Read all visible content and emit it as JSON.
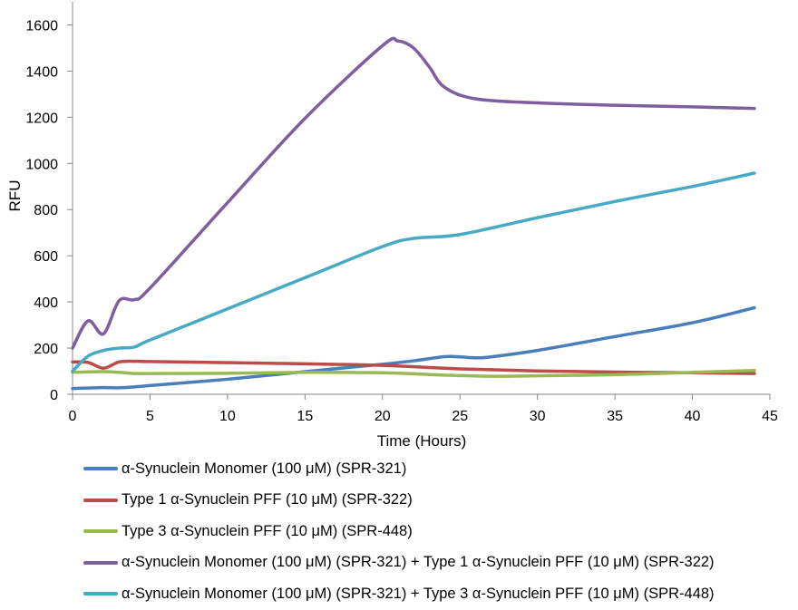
{
  "chart_data": {
    "type": "line",
    "title": "",
    "xlabel": "Time (Hours)",
    "ylabel": "RFU",
    "xlim": [
      0,
      45
    ],
    "ylim": [
      0,
      1700
    ],
    "x_ticks": [
      0,
      5,
      10,
      15,
      20,
      25,
      30,
      35,
      40,
      45
    ],
    "y_ticks": [
      0,
      200,
      400,
      600,
      800,
      1000,
      1200,
      1400,
      1600
    ],
    "grid": false,
    "legend_position": "bottom",
    "series": [
      {
        "name": "α-Synuclein Monomer (100 μM) (SPR-321)",
        "color": "#4a7ebb",
        "points": [
          [
            0,
            25
          ],
          [
            1,
            27
          ],
          [
            2,
            29
          ],
          [
            3,
            28
          ],
          [
            4,
            32
          ],
          [
            5,
            38
          ],
          [
            10,
            65
          ],
          [
            15,
            98
          ],
          [
            20,
            130
          ],
          [
            22,
            145
          ],
          [
            24,
            163
          ],
          [
            25,
            162
          ],
          [
            26,
            158
          ],
          [
            27,
            162
          ],
          [
            30,
            190
          ],
          [
            35,
            250
          ],
          [
            40,
            310
          ],
          [
            44,
            375
          ]
        ]
      },
      {
        "name": "Type 1 α-Synuclein PFF (10 μM) (SPR-322)",
        "color": "#be4b48",
        "points": [
          [
            0,
            140
          ],
          [
            1,
            138
          ],
          [
            2,
            113
          ],
          [
            3,
            140
          ],
          [
            4,
            143
          ],
          [
            5,
            142
          ],
          [
            10,
            137
          ],
          [
            15,
            132
          ],
          [
            20,
            125
          ],
          [
            25,
            110
          ],
          [
            30,
            101
          ],
          [
            35,
            96
          ],
          [
            40,
            93
          ],
          [
            44,
            90
          ]
        ]
      },
      {
        "name": "Type 3 α-Synuclein PFF (10 μM) (SPR-448)",
        "color": "#98b954",
        "points": [
          [
            0,
            95
          ],
          [
            1,
            97
          ],
          [
            2,
            98
          ],
          [
            3,
            95
          ],
          [
            4,
            90
          ],
          [
            5,
            90
          ],
          [
            10,
            91
          ],
          [
            15,
            95
          ],
          [
            20,
            93
          ],
          [
            24,
            83
          ],
          [
            27,
            78
          ],
          [
            30,
            80
          ],
          [
            35,
            85
          ],
          [
            40,
            95
          ],
          [
            44,
            103
          ]
        ]
      },
      {
        "name": "α-Synuclein Monomer (100 μM) (SPR-321) + Type 1 α-Synuclein PFF (10 μM) (SPR-322)",
        "color": "#7d5fa0",
        "points": [
          [
            0,
            200
          ],
          [
            1,
            318
          ],
          [
            2,
            262
          ],
          [
            3,
            405
          ],
          [
            4,
            410
          ],
          [
            5,
            460
          ],
          [
            10,
            830
          ],
          [
            15,
            1195
          ],
          [
            20,
            1510
          ],
          [
            21,
            1530
          ],
          [
            22,
            1500
          ],
          [
            23,
            1420
          ],
          [
            24,
            1330
          ],
          [
            26,
            1280
          ],
          [
            30,
            1262
          ],
          [
            35,
            1252
          ],
          [
            40,
            1245
          ],
          [
            44,
            1238
          ]
        ]
      },
      {
        "name": "α-Synuclein Monomer (100 μM) (SPR-321) + Type 3 α-Synuclein PFF (10 μM) (SPR-448)",
        "color": "#46aac5",
        "points": [
          [
            0,
            100
          ],
          [
            1,
            165
          ],
          [
            2,
            190
          ],
          [
            3,
            200
          ],
          [
            4,
            205
          ],
          [
            5,
            235
          ],
          [
            10,
            370
          ],
          [
            15,
            505
          ],
          [
            20,
            640
          ],
          [
            22,
            675
          ],
          [
            25,
            692
          ],
          [
            30,
            765
          ],
          [
            35,
            835
          ],
          [
            40,
            900
          ],
          [
            44,
            958
          ]
        ]
      }
    ]
  }
}
